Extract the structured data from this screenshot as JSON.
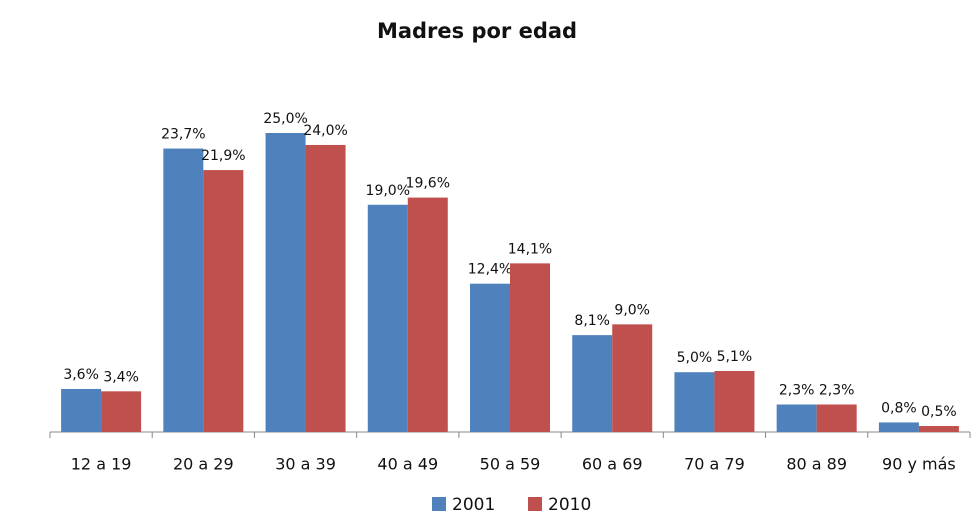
{
  "chart_data": {
    "type": "bar",
    "title": "Madres por edad",
    "categories": [
      "12 a 19",
      "20 a 29",
      "30 a 39",
      "40 a 49",
      "50 a 59",
      "60 a 69",
      "70 a 79",
      "80 a 89",
      "90 y más"
    ],
    "series": [
      {
        "name": "2001",
        "color": "#4f81bd",
        "values": [
          3.6,
          23.7,
          25.0,
          19.0,
          12.4,
          8.1,
          5.0,
          2.3,
          0.8
        ],
        "value_labels": [
          "3,6%",
          "23,7%",
          "25,0%",
          "19,0%",
          "12,4%",
          "8,1%",
          "5,0%",
          "2,3%",
          "0,8%"
        ]
      },
      {
        "name": "2010",
        "color": "#c0504d",
        "values": [
          3.4,
          21.9,
          24.0,
          19.6,
          14.1,
          9.0,
          5.1,
          2.3,
          0.5
        ],
        "value_labels": [
          "3,4%",
          "21,9%",
          "24,0%",
          "19,6%",
          "14,1%",
          "9,0%",
          "5,1%",
          "2,3%",
          "0,5%"
        ]
      }
    ]
  }
}
